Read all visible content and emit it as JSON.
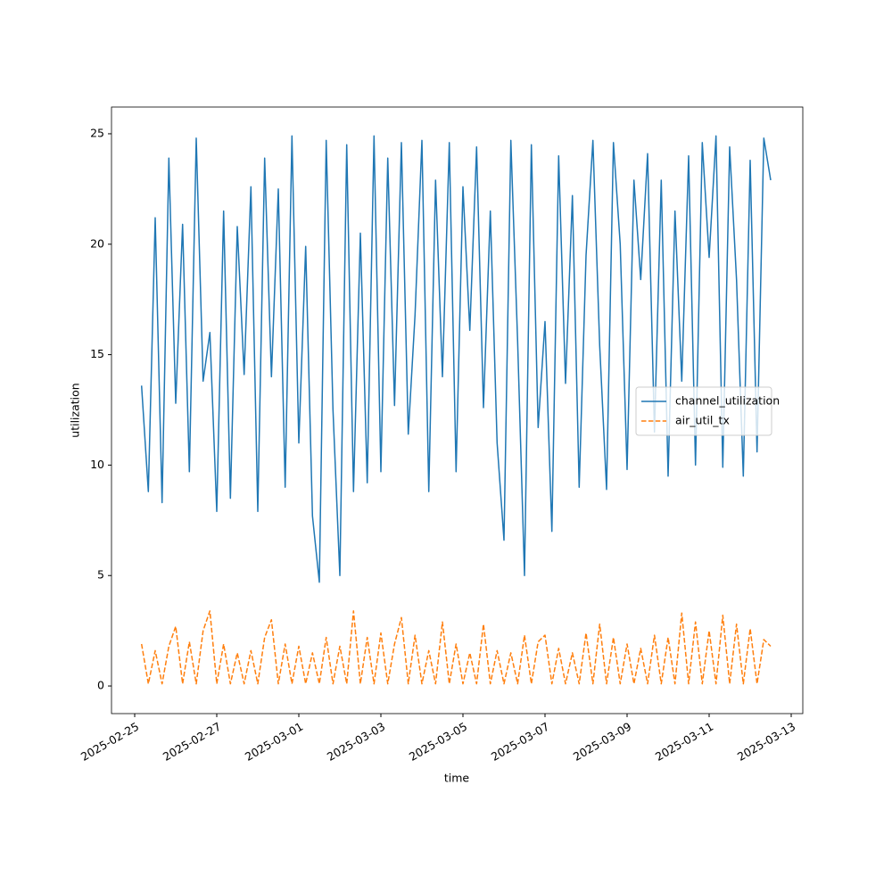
{
  "chart_data": {
    "type": "line",
    "xlabel": "time",
    "ylabel": "utilization",
    "x": [
      "2025-02-25T04:00",
      "2025-02-25T08:00",
      "2025-02-25T12:00",
      "2025-02-25T16:00",
      "2025-02-25T20:00",
      "2025-02-26T00:00",
      "2025-02-26T04:00",
      "2025-02-26T08:00",
      "2025-02-26T12:00",
      "2025-02-26T16:00",
      "2025-02-26T20:00",
      "2025-02-27T00:00",
      "2025-02-27T04:00",
      "2025-02-27T08:00",
      "2025-02-27T12:00",
      "2025-02-27T16:00",
      "2025-02-27T20:00",
      "2025-02-28T00:00",
      "2025-02-28T04:00",
      "2025-02-28T08:00",
      "2025-02-28T12:00",
      "2025-02-28T16:00",
      "2025-02-28T20:00",
      "2025-03-01T00:00",
      "2025-03-01T04:00",
      "2025-03-01T08:00",
      "2025-03-01T12:00",
      "2025-03-01T16:00",
      "2025-03-01T20:00",
      "2025-03-02T00:00",
      "2025-03-02T04:00",
      "2025-03-02T08:00",
      "2025-03-02T12:00",
      "2025-03-02T16:00",
      "2025-03-02T20:00",
      "2025-03-03T00:00",
      "2025-03-03T04:00",
      "2025-03-03T08:00",
      "2025-03-03T12:00",
      "2025-03-03T16:00",
      "2025-03-03T20:00",
      "2025-03-04T00:00",
      "2025-03-04T04:00",
      "2025-03-04T08:00",
      "2025-03-04T12:00",
      "2025-03-04T16:00",
      "2025-03-04T20:00",
      "2025-03-05T00:00",
      "2025-03-05T04:00",
      "2025-03-05T08:00",
      "2025-03-05T12:00",
      "2025-03-05T16:00",
      "2025-03-05T20:00",
      "2025-03-06T00:00",
      "2025-03-06T04:00",
      "2025-03-06T08:00",
      "2025-03-06T12:00",
      "2025-03-06T16:00",
      "2025-03-06T20:00",
      "2025-03-07T00:00",
      "2025-03-07T04:00",
      "2025-03-07T08:00",
      "2025-03-07T12:00",
      "2025-03-07T16:00",
      "2025-03-07T20:00",
      "2025-03-08T00:00",
      "2025-03-08T04:00",
      "2025-03-08T08:00",
      "2025-03-08T12:00",
      "2025-03-08T16:00",
      "2025-03-08T20:00",
      "2025-03-09T00:00",
      "2025-03-09T04:00",
      "2025-03-09T08:00",
      "2025-03-09T12:00",
      "2025-03-09T16:00",
      "2025-03-09T20:00",
      "2025-03-10T00:00",
      "2025-03-10T04:00",
      "2025-03-10T08:00",
      "2025-03-10T12:00",
      "2025-03-10T16:00",
      "2025-03-10T20:00",
      "2025-03-11T00:00",
      "2025-03-11T04:00",
      "2025-03-11T08:00",
      "2025-03-11T12:00",
      "2025-03-11T16:00",
      "2025-03-11T20:00",
      "2025-03-12T00:00",
      "2025-03-12T04:00",
      "2025-03-12T08:00",
      "2025-03-12T12:00"
    ],
    "series": [
      {
        "name": "channel_utilization",
        "color": "#1f77b4",
        "dash": false,
        "values": [
          13.6,
          8.8,
          21.2,
          8.3,
          23.9,
          12.8,
          20.9,
          9.7,
          24.8,
          13.8,
          16.0,
          7.9,
          21.5,
          8.5,
          20.8,
          14.1,
          22.6,
          7.9,
          23.9,
          14.0,
          22.5,
          9.0,
          24.9,
          11.0,
          19.9,
          7.7,
          4.7,
          24.7,
          12.5,
          5.0,
          24.5,
          8.8,
          20.5,
          9.2,
          24.9,
          9.7,
          23.9,
          12.7,
          24.6,
          11.4,
          16.8,
          24.7,
          8.8,
          22.9,
          14.0,
          24.6,
          9.7,
          22.6,
          16.1,
          24.4,
          12.6,
          21.5,
          11.0,
          6.6,
          24.7,
          15.6,
          5.0,
          24.5,
          11.7,
          16.5,
          7.0,
          24.0,
          13.7,
          22.2,
          9.0,
          19.5,
          24.7,
          15.4,
          8.9,
          24.6,
          20.0,
          9.8,
          22.9,
          18.4,
          24.1,
          11.5,
          22.9,
          9.5,
          21.5,
          13.8,
          24.0,
          10.0,
          24.6,
          19.4,
          24.9,
          9.9,
          24.4,
          18.4,
          9.5,
          23.8,
          10.6,
          24.8,
          22.9
        ]
      },
      {
        "name": "air_util_tx",
        "color": "#ff7f0e",
        "dash": true,
        "values": [
          1.9,
          0.1,
          1.6,
          0.1,
          1.8,
          2.7,
          0.1,
          2.0,
          0.1,
          2.5,
          3.4,
          0.1,
          1.9,
          0.1,
          1.5,
          0.1,
          1.6,
          0.1,
          2.2,
          3.0,
          0.1,
          1.9,
          0.1,
          1.8,
          0.1,
          1.5,
          0.1,
          2.2,
          0.1,
          1.8,
          0.1,
          3.4,
          0.1,
          2.2,
          0.1,
          2.4,
          0.1,
          1.9,
          3.1,
          0.1,
          2.3,
          0.1,
          1.6,
          0.1,
          2.9,
          0.1,
          1.9,
          0.1,
          1.5,
          0.1,
          2.8,
          0.1,
          1.6,
          0.1,
          1.5,
          0.1,
          2.3,
          0.1,
          2.0,
          2.3,
          0.1,
          1.7,
          0.1,
          1.5,
          0.1,
          2.4,
          0.1,
          2.8,
          0.1,
          2.2,
          0.1,
          1.9,
          0.1,
          1.7,
          0.1,
          2.3,
          0.1,
          2.2,
          0.1,
          3.3,
          0.1,
          2.9,
          0.1,
          2.5,
          0.1,
          3.2,
          0.1,
          2.8,
          0.1,
          2.6,
          0.1,
          2.1,
          1.8
        ]
      }
    ],
    "xlim": [
      "2025-02-24T10:26",
      "2025-03-13T06:47"
    ],
    "xticks": [
      "2025-02-25",
      "2025-02-27",
      "2025-03-01",
      "2025-03-03",
      "2025-03-05",
      "2025-03-07",
      "2025-03-09",
      "2025-03-11",
      "2025-03-13"
    ],
    "ylim": [
      -1.25,
      26.21
    ],
    "yticks": [
      0,
      5,
      10,
      15,
      20,
      25
    ],
    "grid": false,
    "legend": "center right"
  }
}
